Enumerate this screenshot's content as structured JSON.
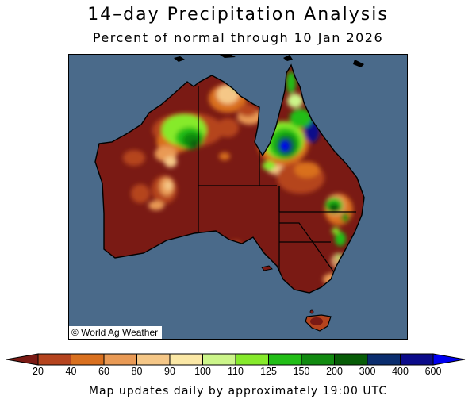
{
  "title": "14–day Precipitation Analysis",
  "subtitle": "Percent of normal through 10 Jan 2026",
  "credit": "© World Ag Weather",
  "footnote": "Map updates daily by approximately 19:00 UTC",
  "colors": {
    "ocean": "#4a6a8a",
    "land_dry": "#7a1a14",
    "boundary": "#000000"
  },
  "legend": {
    "labels": [
      "20",
      "40",
      "60",
      "80",
      "90",
      "100",
      "110",
      "125",
      "150",
      "200",
      "300",
      "400",
      "600"
    ],
    "colors": [
      "#7a1a14",
      "#b5441e",
      "#d9701f",
      "#e99a55",
      "#f5c787",
      "#fbe8a6",
      "#ccf58a",
      "#86ea2c",
      "#22be17",
      "#118a10",
      "#075c07",
      "#0a2d6e",
      "#0b0b8a",
      "#0000f0"
    ]
  }
}
